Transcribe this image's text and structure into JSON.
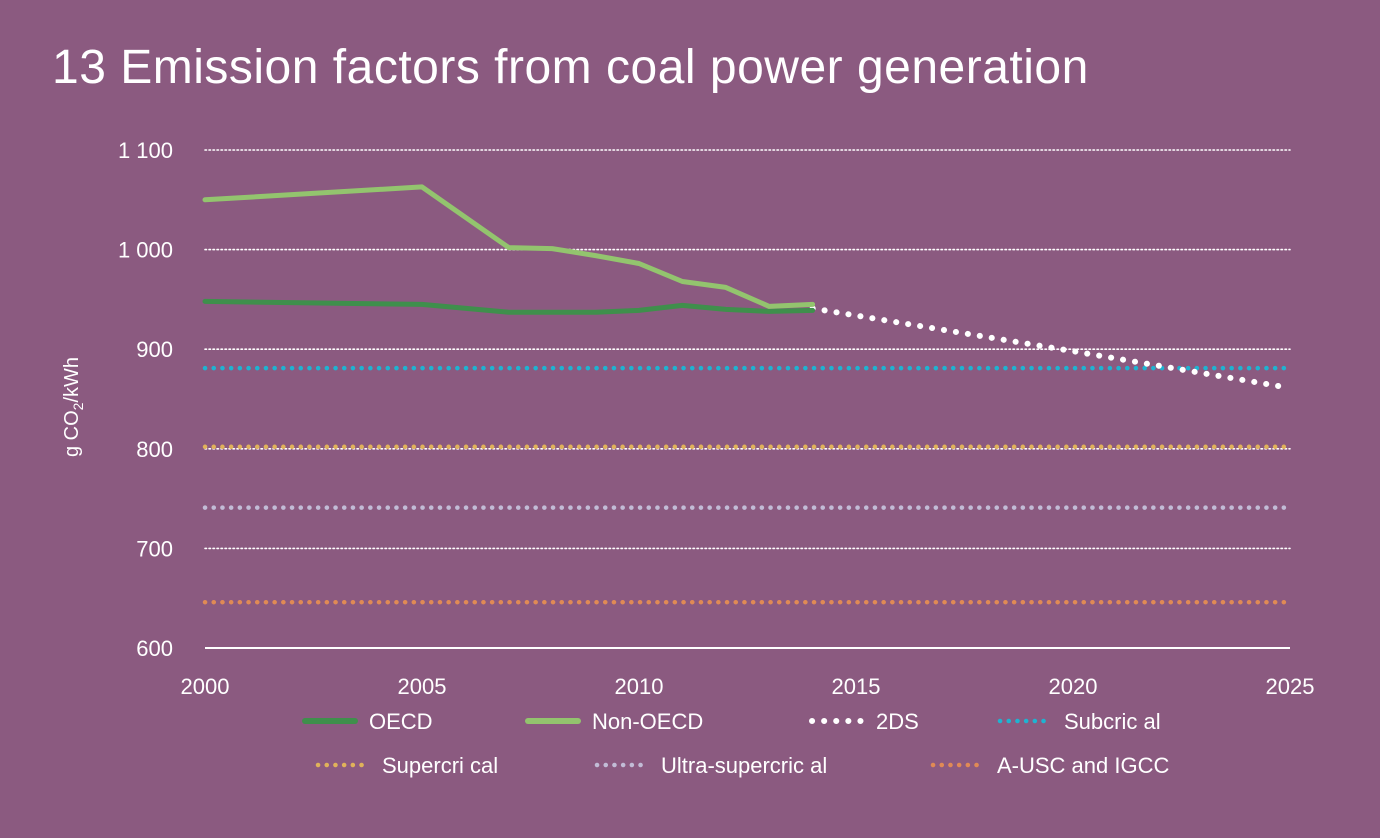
{
  "title": "13 Emission factors from coal power generation",
  "colors": {
    "background": "#8b5a80",
    "grid": "#ffffff",
    "oecd": "#3f8f4c",
    "non_oecd": "#93c46e",
    "two_ds": "#ffffff",
    "subcritical": "#1fb3d1",
    "supercritical": "#e0b25a",
    "ultra_supercritical": "#c2bcd6",
    "ausc_igcc": "#e08a55"
  },
  "chart_data": {
    "type": "line",
    "title": "13 Emission factors from coal power generation",
    "xlabel": "",
    "ylabel": "g CO2/kWh",
    "ylabel_parts": [
      "g CO",
      "2",
      "/kWh"
    ],
    "xlim": [
      2000,
      2025
    ],
    "ylim": [
      600,
      1100
    ],
    "x_ticks": [
      2000,
      2005,
      2010,
      2015,
      2020,
      2025
    ],
    "y_ticks": [
      600,
      700,
      800,
      900,
      1000,
      1100
    ],
    "y_tick_labels": [
      "600",
      "700",
      "800",
      "900",
      "1 000",
      "1 100"
    ],
    "grid": true,
    "legend_position": "bottom",
    "series": [
      {
        "name": "OECD",
        "style": "solid",
        "color_key": "oecd",
        "x": [
          2000,
          2005,
          2007,
          2008,
          2009,
          2010,
          2011,
          2012,
          2013,
          2014
        ],
        "y": [
          948,
          945,
          937,
          937,
          937,
          939,
          944,
          940,
          938,
          939
        ]
      },
      {
        "name": "Non-OECD",
        "style": "solid",
        "color_key": "non_oecd",
        "x": [
          2000,
          2005,
          2007,
          2008,
          2009,
          2010,
          2011,
          2012,
          2013,
          2014
        ],
        "y": [
          1050,
          1063,
          1002,
          1001,
          994,
          986,
          968,
          962,
          943,
          945
        ]
      },
      {
        "name": "2DS",
        "style": "dotted",
        "color_key": "two_ds",
        "x": [
          2014,
          2020,
          2025
        ],
        "y": [
          941,
          898,
          861
        ]
      },
      {
        "name": "Subcric al",
        "style": "dotted",
        "color_key": "subcritical",
        "x": [
          2000,
          2025
        ],
        "y": [
          881,
          881
        ]
      },
      {
        "name": "Supercri cal",
        "style": "dotted",
        "color_key": "supercritical",
        "x": [
          2000,
          2025
        ],
        "y": [
          802,
          802
        ]
      },
      {
        "name": "Ultra-supercric al",
        "style": "dotted",
        "color_key": "ultra_supercritical",
        "x": [
          2000,
          2025
        ],
        "y": [
          741,
          741
        ]
      },
      {
        "name": "A-USC and IGCC",
        "style": "dotted",
        "color_key": "ausc_igcc",
        "x": [
          2000,
          2025
        ],
        "y": [
          646,
          646
        ]
      }
    ]
  }
}
